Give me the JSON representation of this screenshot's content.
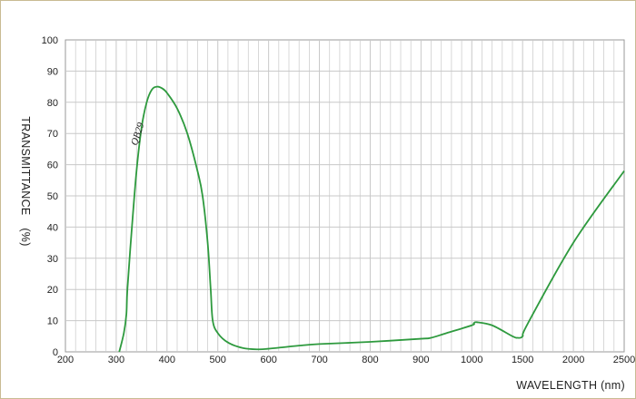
{
  "chart_data": {
    "type": "line",
    "title": "",
    "xlabel": "WAVELENGTH (nm)",
    "ylabel": "TRANSMITTANCE (%)",
    "ylabel_parts": {
      "name": "TRANSMITTANCE",
      "unit": "(%)"
    },
    "xlim": [
      200,
      2500
    ],
    "ylim": [
      0,
      100
    ],
    "x_scale": "piecewise",
    "x_ticks": [
      "200",
      "300",
      "400",
      "500",
      "600",
      "700",
      "800",
      "900",
      "1000",
      "1500",
      "2000",
      "2500"
    ],
    "y_ticks": [
      "0",
      "10",
      "20",
      "30",
      "40",
      "50",
      "60",
      "70",
      "80",
      "90",
      "100"
    ],
    "grid": true,
    "legend": "none",
    "colors": {
      "curve": "#2e9a3e",
      "grid": "#c8c8c8",
      "border": "#c9bb93"
    },
    "series": [
      {
        "name": "QB29",
        "x": [
          306,
          315,
          320,
          322,
          330,
          340,
          350,
          360,
          370,
          380,
          390,
          400,
          420,
          440,
          460,
          470,
          480,
          486,
          490,
          500,
          520,
          550,
          580,
          600,
          630,
          660,
          700,
          800,
          900,
          920,
          950,
          1000,
          1020,
          1050,
          1200,
          1400,
          1450,
          1500,
          1550,
          2000,
          2500
        ],
        "y": [
          0,
          6,
          12,
          20,
          38,
          58,
          72,
          80,
          84,
          85,
          84.5,
          83,
          78,
          70,
          58,
          50,
          35,
          20,
          10,
          6,
          3,
          1.2,
          0.8,
          1.0,
          1.5,
          2.0,
          2.5,
          3.2,
          4.2,
          4.5,
          6,
          8.5,
          9.2,
          9.5,
          8.5,
          5,
          4.5,
          5,
          9,
          35,
          58
        ]
      }
    ]
  }
}
